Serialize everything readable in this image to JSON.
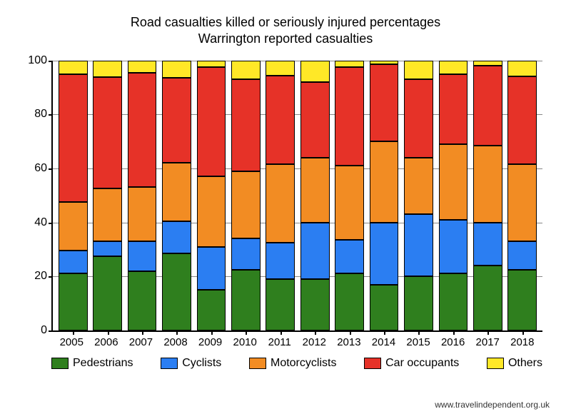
{
  "chart": {
    "type": "stacked-bar",
    "title_line1": "Road casualties killed or seriously injured percentages",
    "title_line2": "Warrington reported casualties",
    "title_fontsize": 18,
    "background_color": "#ffffff",
    "axis_color": "#000000",
    "grid_color": "#888888",
    "label_fontsize": 16,
    "xlabel_fontsize": 15,
    "ylim": [
      0,
      100
    ],
    "ytick_step": 20,
    "yticks": [
      0,
      20,
      40,
      60,
      80,
      100
    ],
    "categories": [
      "2005",
      "2006",
      "2007",
      "2008",
      "2009",
      "2010",
      "2011",
      "2012",
      "2013",
      "2014",
      "2015",
      "2016",
      "2017",
      "2018"
    ],
    "series": [
      {
        "name": "Pedestrians",
        "color": "#2f7f1e"
      },
      {
        "name": "Cyclists",
        "color": "#2b7ef2"
      },
      {
        "name": "Motorcyclists",
        "color": "#f28c23"
      },
      {
        "name": "Car occupants",
        "color": "#e63228"
      },
      {
        "name": "Others",
        "color": "#ffe827"
      }
    ],
    "data": [
      [
        21.0,
        8.5,
        18.0,
        47.5,
        5.0
      ],
      [
        27.5,
        5.5,
        19.5,
        41.5,
        6.0
      ],
      [
        22.0,
        11.0,
        20.0,
        42.5,
        4.5
      ],
      [
        28.5,
        12.0,
        21.5,
        31.5,
        6.5
      ],
      [
        15.0,
        16.0,
        26.0,
        40.5,
        2.5
      ],
      [
        22.5,
        11.5,
        25.0,
        34.0,
        7.0
      ],
      [
        19.0,
        13.5,
        29.0,
        33.0,
        5.5
      ],
      [
        19.0,
        21.0,
        24.0,
        28.0,
        8.0
      ],
      [
        21.0,
        12.5,
        27.5,
        36.5,
        2.5
      ],
      [
        17.0,
        23.0,
        30.0,
        28.5,
        1.5
      ],
      [
        20.0,
        23.0,
        21.0,
        29.0,
        7.0
      ],
      [
        21.0,
        20.0,
        28.0,
        26.0,
        5.0
      ],
      [
        24.0,
        16.0,
        28.5,
        29.5,
        2.0
      ],
      [
        22.5,
        10.5,
        28.5,
        32.5,
        6.0
      ]
    ],
    "bar_width_ratio": 0.84
  },
  "credit": "www.travelindependent.org.uk"
}
